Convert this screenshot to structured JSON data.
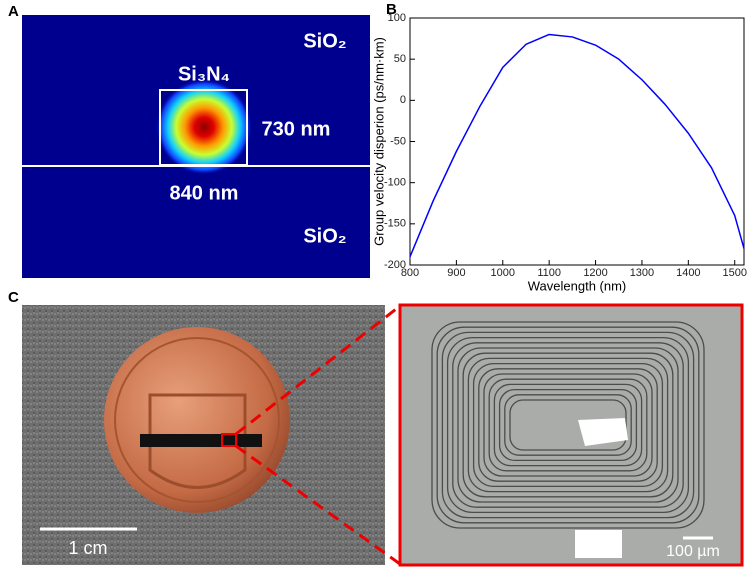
{
  "panels": {
    "a": {
      "label": "A",
      "top_cladding": "SiO₂",
      "core": "Si₃N₄",
      "height": "730 nm",
      "width": "840 nm",
      "bottom_cladding": "SiO₂"
    },
    "b": {
      "label": "B"
    },
    "c": {
      "label": "C",
      "left_scale": "1 cm",
      "right_scale": "100 µm"
    }
  },
  "chart_data": {
    "type": "line",
    "x_label": "Wavelength (nm)",
    "y_label": "Group velocity disperion (ps/nm·km)",
    "x": [
      800,
      850,
      900,
      950,
      1000,
      1050,
      1100,
      1150,
      1200,
      1250,
      1300,
      1350,
      1400,
      1450,
      1500,
      1520
    ],
    "series": [
      {
        "color": "#0000ff",
        "values": [
          -190,
          -122,
          -62,
          -8,
          40,
          68,
          80,
          77,
          67,
          50,
          25,
          -5,
          -40,
          -82,
          -140,
          -180
        ]
      }
    ],
    "xlim": [
      800,
      1520
    ],
    "xticks": [
      800,
      900,
      1000,
      1100,
      1200,
      1300,
      1400,
      1500
    ],
    "ylim": [
      -200,
      100
    ],
    "yticks": [
      -200,
      -150,
      -100,
      -50,
      0,
      50,
      100
    ],
    "grid": false
  }
}
